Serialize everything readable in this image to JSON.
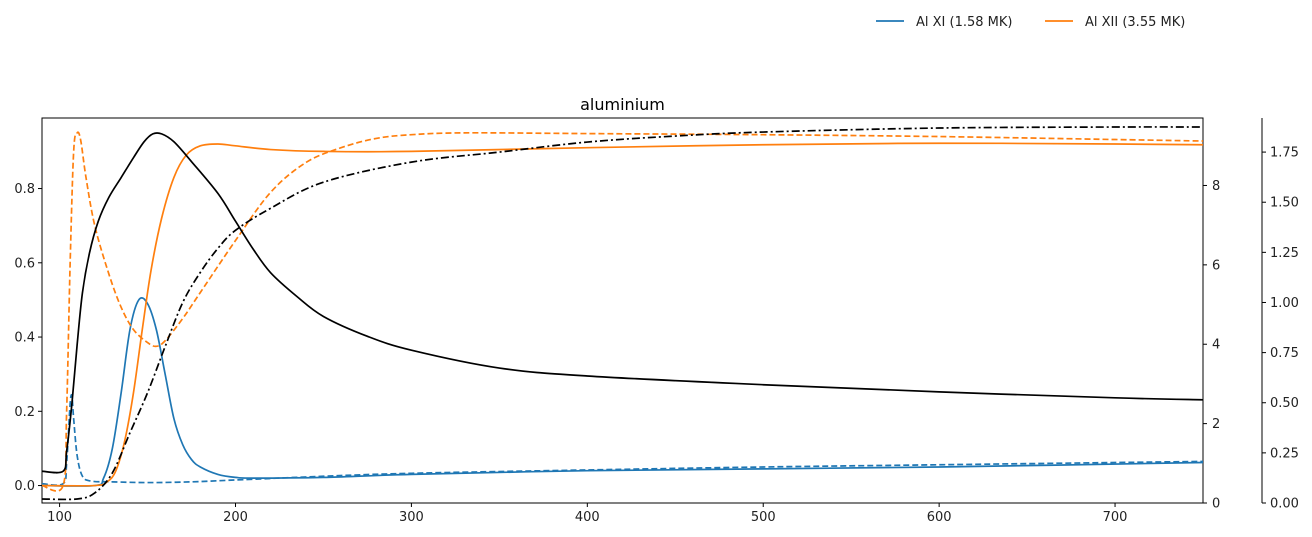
{
  "chart_data": {
    "type": "line",
    "title": "aluminium",
    "xlabel": "",
    "ylabel": "",
    "xlim": [
      90,
      750
    ],
    "ylim_left": [
      -0.047,
      0.99
    ],
    "ylim_right": [
      0,
      9.7
    ],
    "ylim_right2": [
      0,
      1.92
    ],
    "x_ticks": [
      100,
      200,
      300,
      400,
      500,
      600,
      700
    ],
    "y_ticks_left": [
      0.0,
      0.2,
      0.4,
      0.6,
      0.8
    ],
    "y_ticks_right": [
      0,
      2,
      4,
      6,
      8
    ],
    "y_ticks_right2": [
      0.0,
      0.25,
      0.5,
      0.75,
      1.0,
      1.25,
      1.5,
      1.75
    ],
    "grid": false,
    "legend": {
      "placement": "top-right-outside",
      "entries": [
        {
          "label": "Al XI (1.58 MK)",
          "color": "#1f77b4"
        },
        {
          "label": "Al XII (3.55 MK)",
          "color": "#ff7f0e"
        }
      ]
    },
    "colors": {
      "blue": "#1f77b4",
      "orange": "#ff7f0e",
      "black": "#000000"
    },
    "series": [
      {
        "axis": "left",
        "color": "#1f77b4",
        "style": "solid",
        "points": [
          [
            90,
            0.0
          ],
          [
            120,
            0.0
          ],
          [
            125,
            0.02
          ],
          [
            130,
            0.1
          ],
          [
            135,
            0.25
          ],
          [
            140,
            0.42
          ],
          [
            145,
            0.5
          ],
          [
            150,
            0.49
          ],
          [
            155,
            0.42
          ],
          [
            160,
            0.3
          ],
          [
            165,
            0.18
          ],
          [
            170,
            0.11
          ],
          [
            175,
            0.07
          ],
          [
            180,
            0.05
          ],
          [
            190,
            0.03
          ],
          [
            200,
            0.022
          ],
          [
            210,
            0.02
          ],
          [
            250,
            0.022
          ],
          [
            300,
            0.03
          ],
          [
            400,
            0.04
          ],
          [
            500,
            0.045
          ],
          [
            600,
            0.05
          ],
          [
            750,
            0.062
          ]
        ]
      },
      {
        "axis": "left",
        "color": "#1f77b4",
        "style": "dashed",
        "points": [
          [
            90,
            0.005
          ],
          [
            102,
            0.005
          ],
          [
            104,
            0.06
          ],
          [
            106,
            0.22
          ],
          [
            107,
            0.24
          ],
          [
            108,
            0.18
          ],
          [
            110,
            0.08
          ],
          [
            113,
            0.025
          ],
          [
            118,
            0.012
          ],
          [
            130,
            0.01
          ],
          [
            150,
            0.008
          ],
          [
            175,
            0.01
          ],
          [
            200,
            0.015
          ],
          [
            250,
            0.025
          ],
          [
            300,
            0.033
          ],
          [
            400,
            0.042
          ],
          [
            500,
            0.05
          ],
          [
            600,
            0.056
          ],
          [
            750,
            0.065
          ]
        ]
      },
      {
        "axis": "left",
        "color": "#ff7f0e",
        "style": "solid",
        "points": [
          [
            90,
            0.0
          ],
          [
            120,
            0.0
          ],
          [
            127,
            0.01
          ],
          [
            132,
            0.04
          ],
          [
            137,
            0.12
          ],
          [
            142,
            0.25
          ],
          [
            147,
            0.42
          ],
          [
            152,
            0.58
          ],
          [
            158,
            0.72
          ],
          [
            165,
            0.83
          ],
          [
            172,
            0.89
          ],
          [
            180,
            0.915
          ],
          [
            190,
            0.92
          ],
          [
            200,
            0.915
          ],
          [
            220,
            0.905
          ],
          [
            250,
            0.9
          ],
          [
            300,
            0.9
          ],
          [
            400,
            0.91
          ],
          [
            500,
            0.918
          ],
          [
            600,
            0.922
          ],
          [
            700,
            0.92
          ],
          [
            750,
            0.918
          ]
        ]
      },
      {
        "axis": "left",
        "color": "#ff7f0e",
        "style": "dashed",
        "points": [
          [
            90,
            0.0
          ],
          [
            102,
            0.0
          ],
          [
            104,
            0.2
          ],
          [
            106,
            0.6
          ],
          [
            108,
            0.9
          ],
          [
            110,
            0.95
          ],
          [
            112,
            0.93
          ],
          [
            115,
            0.83
          ],
          [
            120,
            0.7
          ],
          [
            128,
            0.57
          ],
          [
            135,
            0.48
          ],
          [
            142,
            0.42
          ],
          [
            150,
            0.385
          ],
          [
            155,
            0.375
          ],
          [
            160,
            0.39
          ],
          [
            170,
            0.45
          ],
          [
            180,
            0.52
          ],
          [
            200,
            0.66
          ],
          [
            220,
            0.79
          ],
          [
            240,
            0.87
          ],
          [
            260,
            0.91
          ],
          [
            280,
            0.935
          ],
          [
            300,
            0.945
          ],
          [
            330,
            0.95
          ],
          [
            400,
            0.948
          ],
          [
            500,
            0.945
          ],
          [
            600,
            0.94
          ],
          [
            700,
            0.932
          ],
          [
            750,
            0.928
          ]
        ]
      },
      {
        "axis": "right",
        "color": "#000000",
        "style": "solid",
        "points": [
          [
            90,
            0.8
          ],
          [
            102,
            0.8
          ],
          [
            104,
            1.3
          ],
          [
            107,
            2.5
          ],
          [
            110,
            4.0
          ],
          [
            113,
            5.3
          ],
          [
            117,
            6.3
          ],
          [
            122,
            7.1
          ],
          [
            128,
            7.7
          ],
          [
            135,
            8.2
          ],
          [
            142,
            8.7
          ],
          [
            148,
            9.1
          ],
          [
            153,
            9.3
          ],
          [
            158,
            9.3
          ],
          [
            165,
            9.1
          ],
          [
            175,
            8.6
          ],
          [
            190,
            7.8
          ],
          [
            200,
            7.1
          ],
          [
            210,
            6.4
          ],
          [
            220,
            5.8
          ],
          [
            235,
            5.2
          ],
          [
            250,
            4.7
          ],
          [
            275,
            4.2
          ],
          [
            300,
            3.85
          ],
          [
            350,
            3.4
          ],
          [
            400,
            3.2
          ],
          [
            500,
            2.98
          ],
          [
            600,
            2.8
          ],
          [
            700,
            2.65
          ],
          [
            750,
            2.6
          ]
        ]
      },
      {
        "axis": "right2",
        "color": "#000000",
        "style": "dashdot",
        "points": [
          [
            90,
            0.02
          ],
          [
            110,
            0.02
          ],
          [
            120,
            0.05
          ],
          [
            130,
            0.15
          ],
          [
            140,
            0.35
          ],
          [
            150,
            0.55
          ],
          [
            160,
            0.78
          ],
          [
            170,
            1.0
          ],
          [
            180,
            1.15
          ],
          [
            190,
            1.27
          ],
          [
            200,
            1.36
          ],
          [
            220,
            1.47
          ],
          [
            250,
            1.6
          ],
          [
            300,
            1.7
          ],
          [
            350,
            1.75
          ],
          [
            400,
            1.8
          ],
          [
            450,
            1.83
          ],
          [
            500,
            1.85
          ],
          [
            600,
            1.87
          ],
          [
            700,
            1.875
          ],
          [
            750,
            1.875
          ]
        ]
      }
    ]
  }
}
